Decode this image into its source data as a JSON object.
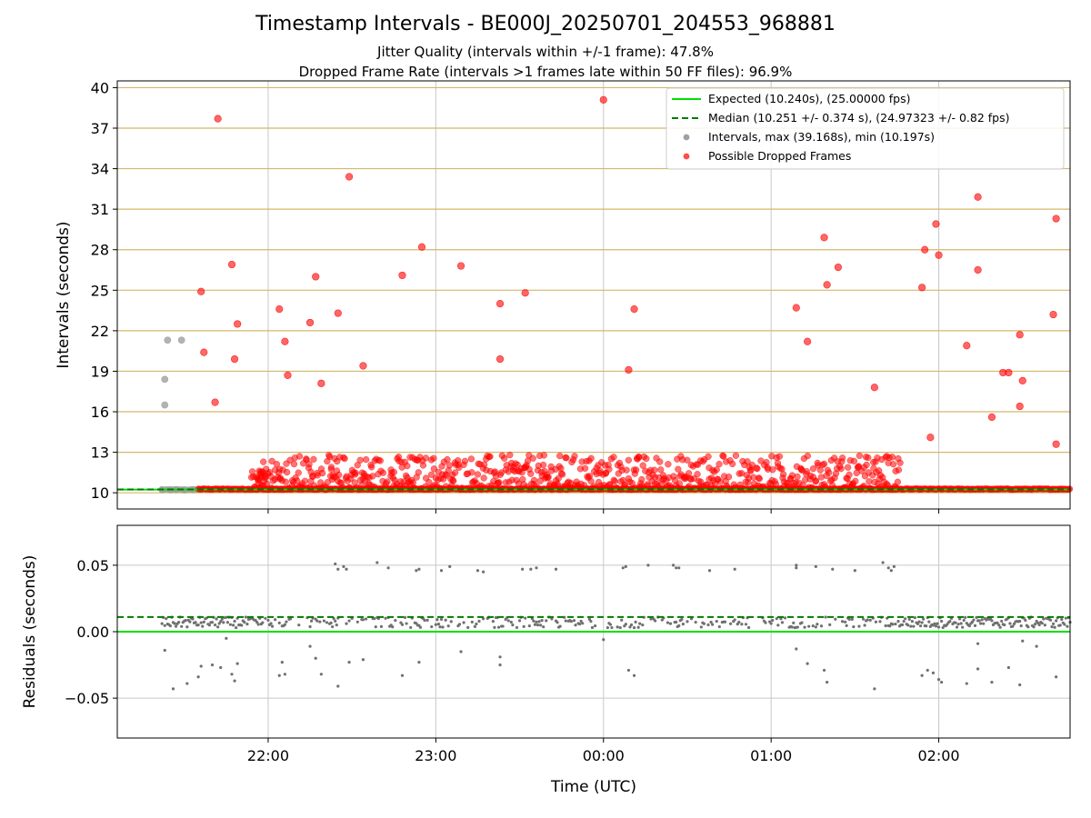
{
  "figure": {
    "title": "Timestamp Intervals - BE000J_20250701_204553_968881",
    "subtitle_1": "Jitter Quality (intervals within +/-1 frame): 47.8%",
    "subtitle_2": "Dropped Frame Rate (intervals >1 frames late within 50 FF files): 96.9%"
  },
  "colors": {
    "expected": "#00e000",
    "median": "#007a00",
    "intervals": "#a0a0a0",
    "dropped": "#ff0000",
    "residual_points": "#707070",
    "hgrid_top": "#d4b86a",
    "grid": "#c8c8c8"
  },
  "chart_data": [
    {
      "type": "scatter",
      "xlabel": "",
      "ylabel": "Intervals (seconds)",
      "x_range": [
        "21:06",
        "02:47"
      ],
      "xticks": [
        "22:00",
        "23:00",
        "00:00",
        "01:00",
        "02:00"
      ],
      "ylim": [
        8.8,
        40.5
      ],
      "yticks": [
        10,
        13,
        16,
        19,
        22,
        25,
        28,
        31,
        34,
        37,
        40
      ],
      "grid": "vertical + horizontal",
      "legend_position": "upper-right",
      "legend": [
        "Expected (10.240s), (25.00000 fps)",
        "Median (10.251 +/- 0.374 s), (24.97323 +/- 0.82 fps)",
        "Intervals, max (39.168s), min (10.197s)",
        "Possible Dropped Frames"
      ],
      "expected_value": 10.24,
      "median_value": 10.251,
      "intervals_points": [
        [
          "21:23",
          16.5
        ],
        [
          "21:23",
          18.4
        ],
        [
          "21:24",
          21.3
        ],
        [
          "21:29",
          21.3
        ],
        [
          "21:22",
          10.23
        ],
        [
          "21:25",
          10.22
        ],
        [
          "21:27",
          10.24
        ],
        [
          "21:30",
          10.21
        ],
        [
          "21:33",
          10.24
        ]
      ],
      "dropped_points": [
        [
          "21:36",
          24.9
        ],
        [
          "21:37",
          20.4
        ],
        [
          "21:41",
          16.7
        ],
        [
          "21:42",
          37.7
        ],
        [
          "21:47",
          26.9
        ],
        [
          "21:48",
          19.9
        ],
        [
          "21:49",
          22.5
        ],
        [
          "22:04",
          23.6
        ],
        [
          "22:06",
          21.2
        ],
        [
          "22:07",
          18.7
        ],
        [
          "22:15",
          22.6
        ],
        [
          "22:17",
          26.0
        ],
        [
          "22:19",
          18.1
        ],
        [
          "22:25",
          23.3
        ],
        [
          "22:29",
          33.4
        ],
        [
          "22:34",
          19.4
        ],
        [
          "22:48",
          26.1
        ],
        [
          "22:55",
          28.2
        ],
        [
          "23:09",
          26.8
        ],
        [
          "23:23",
          24.0
        ],
        [
          "23:23",
          19.9
        ],
        [
          "23:32",
          24.8
        ],
        [
          "00:00",
          39.1
        ],
        [
          "00:09",
          19.1
        ],
        [
          "00:11",
          23.6
        ],
        [
          "01:09",
          23.7
        ],
        [
          "01:13",
          21.2
        ],
        [
          "01:19",
          28.9
        ],
        [
          "01:20",
          25.4
        ],
        [
          "01:24",
          26.7
        ],
        [
          "01:37",
          17.8
        ],
        [
          "01:54",
          25.2
        ],
        [
          "01:55",
          28.0
        ],
        [
          "01:57",
          14.1
        ],
        [
          "01:59",
          29.9
        ],
        [
          "02:00",
          27.6
        ],
        [
          "02:10",
          20.9
        ],
        [
          "02:14",
          31.9
        ],
        [
          "02:14",
          26.5
        ],
        [
          "02:19",
          15.6
        ],
        [
          "02:23",
          18.9
        ],
        [
          "02:25",
          18.9
        ],
        [
          "02:29",
          21.7
        ],
        [
          "02:29",
          16.4
        ],
        [
          "02:30",
          18.3
        ],
        [
          "02:41",
          23.2
        ],
        [
          "02:42",
          13.6
        ],
        [
          "02:42",
          30.3
        ]
      ],
      "dropped_band": {
        "x_start": "21:35",
        "x_end": "02:47",
        "baseline": 10.24,
        "dense_from": "21:56",
        "dense_to": "01:46",
        "typical_max": 12.8
      }
    },
    {
      "type": "scatter",
      "xlabel": "Time (UTC)",
      "ylabel": "Residuals (seconds)",
      "x_range": [
        "21:06",
        "02:47"
      ],
      "xticks": [
        "22:00",
        "23:00",
        "00:00",
        "01:00",
        "02:00"
      ],
      "ylim": [
        -0.08,
        0.08
      ],
      "yticks": [
        0.05,
        0.0,
        -0.05
      ],
      "ytick_labels": [
        "0.05",
        "0.00",
        "−0.05"
      ],
      "grid": "vertical + horizontal",
      "expected_residual": 0.0,
      "median_residual": 0.011,
      "residual_band": {
        "center": 0.007,
        "spread": 0.004
      },
      "residual_outliers": [
        [
          "21:23",
          -0.014
        ],
        [
          "21:26",
          -0.043
        ],
        [
          "21:31",
          -0.039
        ],
        [
          "21:35",
          -0.034
        ],
        [
          "21:36",
          -0.026
        ],
        [
          "21:40",
          -0.025
        ],
        [
          "21:43",
          -0.027
        ],
        [
          "21:47",
          -0.032
        ],
        [
          "21:48",
          -0.037
        ],
        [
          "21:49",
          -0.024
        ],
        [
          "21:45",
          -0.005
        ],
        [
          "22:04",
          -0.033
        ],
        [
          "22:05",
          -0.023
        ],
        [
          "22:06",
          -0.032
        ],
        [
          "22:15",
          -0.011
        ],
        [
          "22:17",
          -0.02
        ],
        [
          "22:19",
          -0.032
        ],
        [
          "22:25",
          -0.041
        ],
        [
          "22:29",
          -0.023
        ],
        [
          "22:34",
          -0.021
        ],
        [
          "22:48",
          -0.033
        ],
        [
          "22:54",
          -0.023
        ],
        [
          "23:09",
          -0.015
        ],
        [
          "23:23",
          -0.025
        ],
        [
          "23:23",
          -0.019
        ],
        [
          "00:00",
          -0.006
        ],
        [
          "00:09",
          -0.029
        ],
        [
          "00:11",
          -0.033
        ],
        [
          "01:09",
          -0.013
        ],
        [
          "01:13",
          -0.024
        ],
        [
          "01:19",
          -0.029
        ],
        [
          "01:20",
          -0.038
        ],
        [
          "01:37",
          -0.043
        ],
        [
          "01:54",
          -0.033
        ],
        [
          "01:56",
          -0.029
        ],
        [
          "01:58",
          -0.031
        ],
        [
          "02:00",
          -0.036
        ],
        [
          "02:01",
          -0.038
        ],
        [
          "02:10",
          -0.039
        ],
        [
          "02:14",
          -0.009
        ],
        [
          "02:14",
          -0.028
        ],
        [
          "02:19",
          -0.038
        ],
        [
          "02:25",
          -0.027
        ],
        [
          "02:29",
          -0.04
        ],
        [
          "02:30",
          -0.007
        ],
        [
          "02:35",
          -0.011
        ],
        [
          "02:42",
          -0.034
        ],
        [
          "22:24",
          0.051
        ],
        [
          "22:25",
          0.047
        ],
        [
          "22:27",
          0.049
        ],
        [
          "22:28",
          0.047
        ],
        [
          "22:39",
          0.052
        ],
        [
          "22:43",
          0.048
        ],
        [
          "22:53",
          0.046
        ],
        [
          "22:54",
          0.047
        ],
        [
          "23:02",
          0.046
        ],
        [
          "23:05",
          0.049
        ],
        [
          "23:15",
          0.046
        ],
        [
          "23:17",
          0.045
        ],
        [
          "23:31",
          0.047
        ],
        [
          "23:34",
          0.047
        ],
        [
          "23:36",
          0.048
        ],
        [
          "23:43",
          0.047
        ],
        [
          "00:07",
          0.048
        ],
        [
          "00:08",
          0.049
        ],
        [
          "00:16",
          0.05
        ],
        [
          "00:25",
          0.05
        ],
        [
          "00:26",
          0.048
        ],
        [
          "00:27",
          0.048
        ],
        [
          "00:38",
          0.046
        ],
        [
          "00:47",
          0.047
        ],
        [
          "01:09",
          0.05
        ],
        [
          "01:09",
          0.048
        ],
        [
          "01:16",
          0.049
        ],
        [
          "01:22",
          0.047
        ],
        [
          "01:30",
          0.046
        ],
        [
          "01:40",
          0.052
        ],
        [
          "01:42",
          0.048
        ],
        [
          "01:43",
          0.046
        ],
        [
          "01:44",
          0.049
        ]
      ]
    }
  ]
}
